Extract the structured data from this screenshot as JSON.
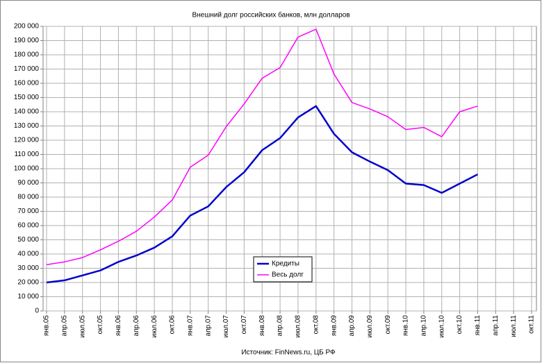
{
  "chart_data": {
    "type": "line",
    "title": "Внешний долг российских банков, млн долларов",
    "source": "Источник: FinNews.ru, ЦБ РФ",
    "categories": [
      "янв.05",
      "апр.05",
      "июл.05",
      "окт.05",
      "янв.06",
      "апр.06",
      "июл.06",
      "окт.06",
      "янв.07",
      "апр.07",
      "июл.07",
      "окт.07",
      "янв.08",
      "апр.08",
      "июл.08",
      "окт.08",
      "янв.09",
      "апр.09",
      "июл.09",
      "окт.09",
      "янв.10",
      "апр.10",
      "июл.10",
      "окт.10",
      "янв.11",
      "апр.11",
      "июл.11",
      "окт.11"
    ],
    "series": [
      {
        "name": "Кредиты",
        "color": "#0000cc",
        "values": [
          20000,
          21500,
          25000,
          28500,
          34500,
          39000,
          44500,
          52500,
          67000,
          73500,
          87000,
          97500,
          113000,
          121500,
          136000,
          144000,
          124500,
          111500,
          105000,
          99000,
          89500,
          88500,
          83000,
          89500,
          96000,
          null,
          null,
          null
        ]
      },
      {
        "name": "Весь долг",
        "color": "#ff00ff",
        "values": [
          32500,
          34500,
          37500,
          43000,
          49000,
          56000,
          66000,
          78000,
          101000,
          109500,
          129500,
          145500,
          163500,
          171000,
          192500,
          198000,
          166500,
          146500,
          142000,
          136500,
          127500,
          129000,
          122500,
          140000,
          144000,
          null,
          null,
          null
        ]
      }
    ],
    "ylim": [
      0,
      200000
    ],
    "yticks": [
      0,
      {
        "value": 10000,
        "label": "10 000"
      },
      {
        "value": 20000,
        "label": "20 000"
      },
      {
        "value": 30000,
        "label": "30 000"
      },
      {
        "value": 40000,
        "label": "40 000"
      },
      {
        "value": 50000,
        "label": "50 000"
      },
      {
        "value": 60000,
        "label": "60 000"
      },
      {
        "value": 70000,
        "label": "70 000"
      },
      {
        "value": 80000,
        "label": "80 000"
      },
      {
        "value": 90000,
        "label": "90 000"
      },
      {
        "value": 100000,
        "label": "100 000"
      },
      {
        "value": 110000,
        "label": "110 000"
      },
      {
        "value": 120000,
        "label": "120 000"
      },
      {
        "value": 130000,
        "label": "130 000"
      },
      {
        "value": 140000,
        "label": "140 000"
      },
      {
        "value": 150000,
        "label": "150 000"
      },
      {
        "value": 160000,
        "label": "160 000"
      },
      {
        "value": 170000,
        "label": "170 000"
      },
      {
        "value": 180000,
        "label": "180 000"
      },
      {
        "value": 190000,
        "label": "190 000"
      },
      {
        "value": 200000,
        "label": "200 000"
      }
    ],
    "grid": true,
    "legend": "center"
  }
}
